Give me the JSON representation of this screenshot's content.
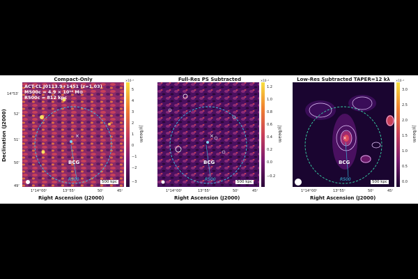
{
  "panels": [
    {
      "title": "Compact-Only",
      "cbar_ticks": [
        "5",
        "4",
        "3",
        "2",
        "1",
        "0",
        "−1",
        "−2",
        "−3"
      ],
      "cbar_multiplier": "×10⁻⁵",
      "cbar_label": "Jy/beam",
      "bcg_label": "BCG",
      "r500_label": "R500",
      "scale_label": "500 kpc",
      "x_ticks": [
        "1°14ᵐ00ˢ",
        "13ᵐ55ˢ",
        "50ˢ",
        "45ˢ"
      ],
      "xlabel": "Right Ascension (J2000)"
    },
    {
      "title": "Full-Res PS Subtracted",
      "cbar_ticks": [
        "1.2",
        "1.0",
        "0.8",
        "0.6",
        "0.4",
        "0.2",
        "0.0",
        "−0.2"
      ],
      "cbar_multiplier": "×10⁻⁴",
      "cbar_label": "Jy/beam",
      "bcg_label": "BCG",
      "r500_label": "R500",
      "scale_label": "500 kpc",
      "x_ticks": [
        "1°14ᵐ00ˢ",
        "13ᵐ55ˢ",
        "50ˢ",
        "45ˢ"
      ],
      "xlabel": "Right Ascension (J2000)"
    },
    {
      "title": "Low-Res Subtracted TAPER=12 kλ",
      "cbar_ticks": [
        "3.0",
        "2.5",
        "2.0",
        "1.5",
        "1.0",
        "0.5",
        "0.0"
      ],
      "cbar_multiplier": "×10⁻⁴",
      "cbar_label": "Jy/beam",
      "bcg_label": "BCG",
      "r500_label": "R500",
      "scale_label": "500 kpc",
      "x_ticks": [
        "1°14ᵐ00ˢ",
        "13ᵐ55ˢ",
        "50ˢ",
        "45ˢ"
      ],
      "xlabel": "Right Ascension (J2000)"
    }
  ],
  "ylabel": "Declination (J2000)",
  "y_ticks": [
    "14°53'",
    "52'",
    "51'",
    "50'",
    "49'"
  ],
  "info": {
    "line1": "ACT-CL J0113.9+1451 (z=1.03)",
    "line2": "M500c = 4.9 × 10¹⁴ M⊙",
    "line3": "R500c = 812 kpc"
  },
  "colors": {
    "map_dark": "#1a0530",
    "map_mid": "#b0306a",
    "map_bright": "#f7d23a",
    "r500_circle": "#38c8e8",
    "bcg_marker": "#38c8e8",
    "contour": "#e8c8ff"
  }
}
